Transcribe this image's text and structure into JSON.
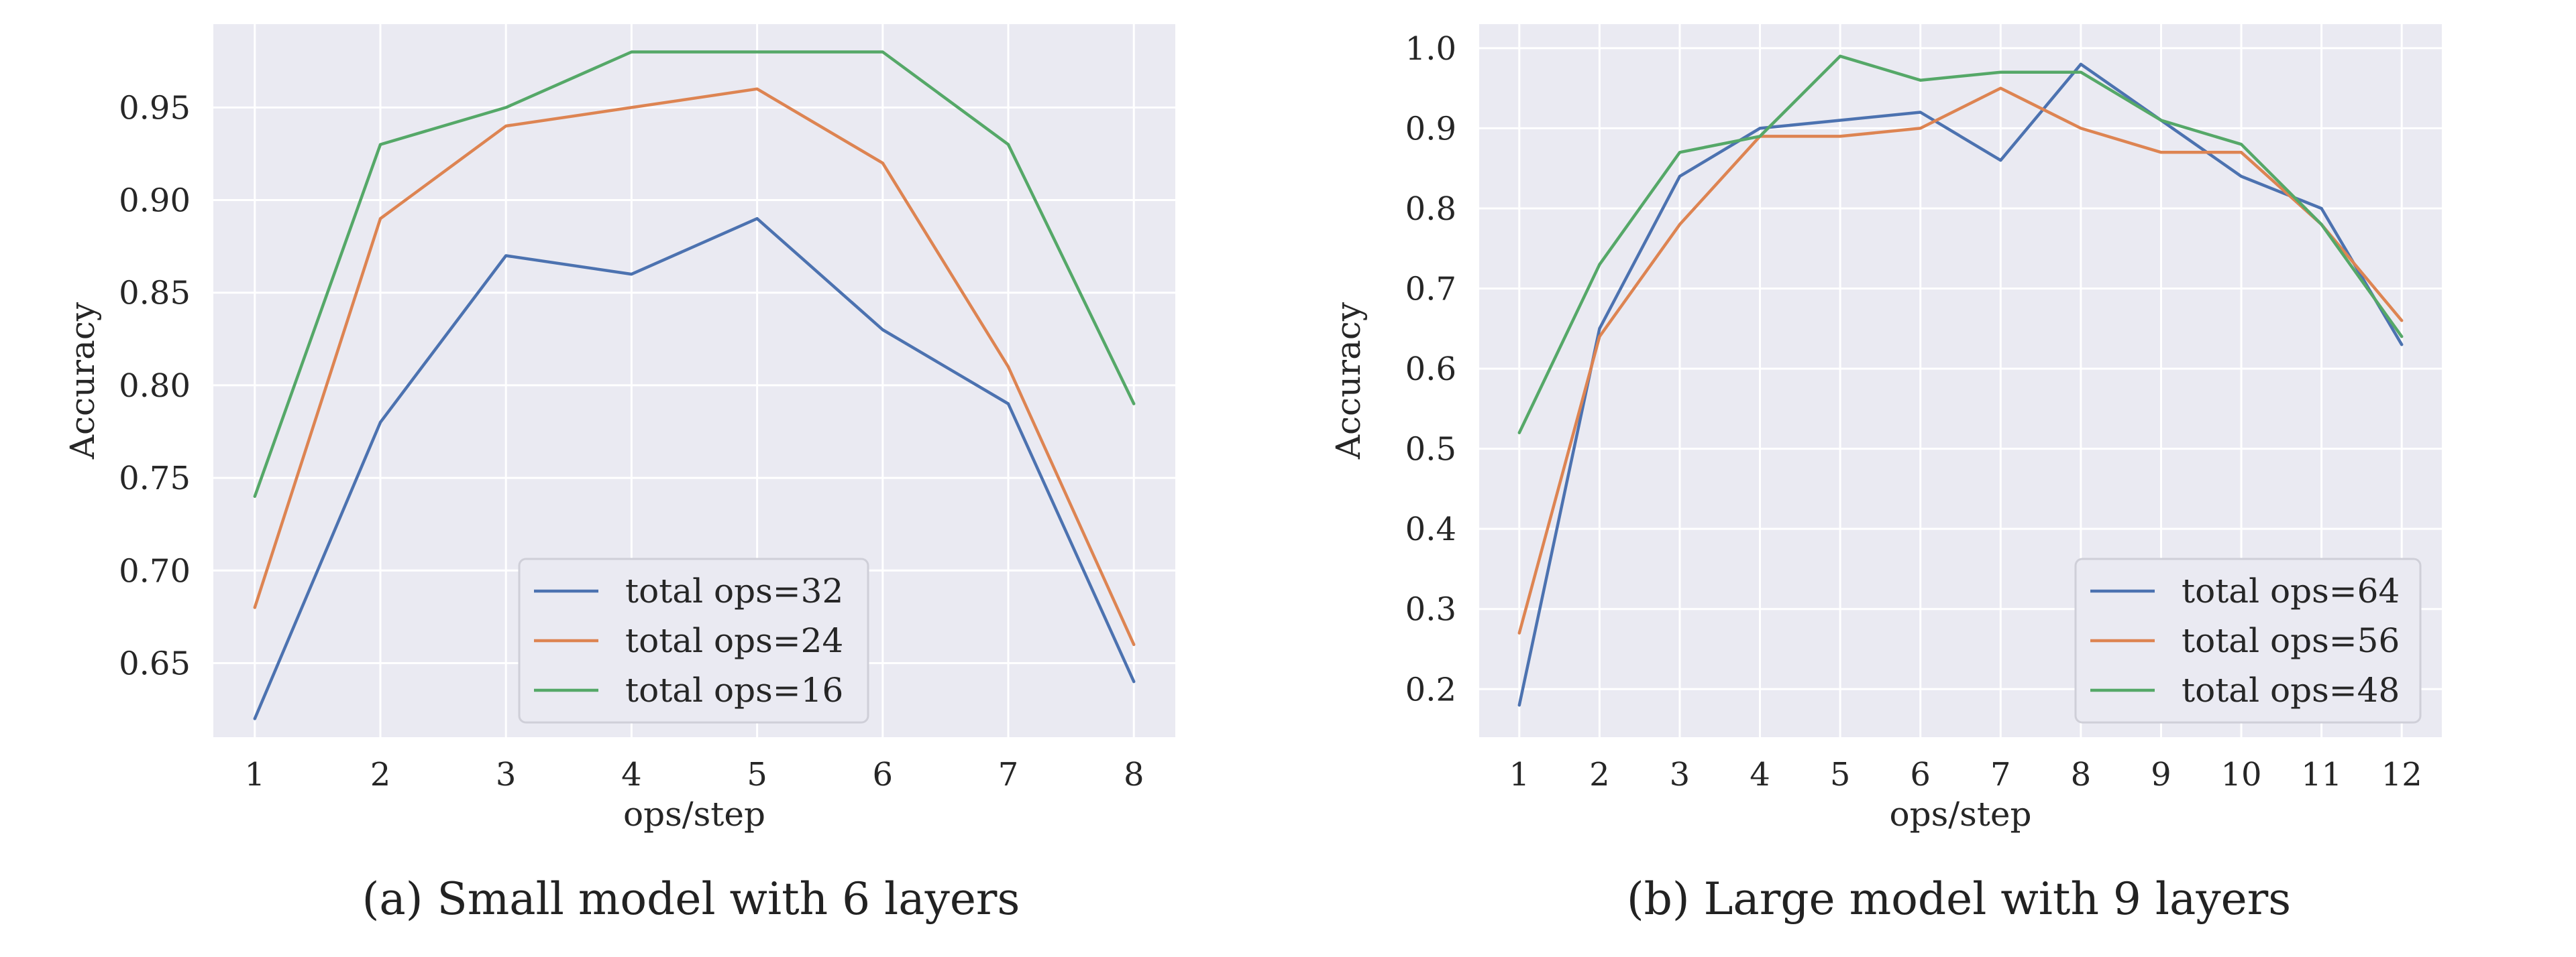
{
  "colors": {
    "series": [
      "#4c72b0",
      "#dd8452",
      "#55a868"
    ]
  },
  "chart_data": [
    {
      "type": "line",
      "title": "",
      "caption": "(a) Small model with 6 layers",
      "xlabel": "ops/step",
      "ylabel": "Accuracy",
      "x": [
        1,
        2,
        3,
        4,
        5,
        6,
        7,
        8
      ],
      "xlim": [
        0.67,
        8.33
      ],
      "ylim": [
        0.61,
        0.995
      ],
      "yticks": [
        0.65,
        0.7,
        0.75,
        0.8,
        0.85,
        0.9,
        0.95
      ],
      "ytick_labels": [
        "0.65",
        "0.70",
        "0.75",
        "0.80",
        "0.85",
        "0.90",
        "0.95"
      ],
      "xticks": [
        1,
        2,
        3,
        4,
        5,
        6,
        7,
        8
      ],
      "xtick_labels": [
        "1",
        "2",
        "3",
        "4",
        "5",
        "6",
        "7",
        "8"
      ],
      "grid": true,
      "legend_position": "bottom-center",
      "series": [
        {
          "name": "total ops=32",
          "values": [
            0.62,
            0.78,
            0.87,
            0.86,
            0.89,
            0.83,
            0.79,
            0.64
          ]
        },
        {
          "name": "total ops=24",
          "values": [
            0.68,
            0.89,
            0.94,
            0.95,
            0.96,
            0.92,
            0.81,
            0.66
          ]
        },
        {
          "name": "total ops=16",
          "values": [
            0.74,
            0.93,
            0.95,
            0.98,
            0.98,
            0.98,
            0.93,
            0.79
          ]
        }
      ]
    },
    {
      "type": "line",
      "title": "",
      "caption": "(b) Large model with 9 layers",
      "xlabel": "ops/step",
      "ylabel": "Accuracy",
      "x": [
        1,
        2,
        3,
        4,
        5,
        6,
        7,
        8,
        9,
        10,
        11,
        12
      ],
      "xlim": [
        0.5,
        12.5
      ],
      "ylim": [
        0.14,
        1.03
      ],
      "yticks": [
        0.2,
        0.3,
        0.4,
        0.5,
        0.6,
        0.7,
        0.8,
        0.9,
        1.0
      ],
      "ytick_labels": [
        "0.2",
        "0.3",
        "0.4",
        "0.5",
        "0.6",
        "0.7",
        "0.8",
        "0.9",
        "1.0"
      ],
      "xticks": [
        1,
        2,
        3,
        4,
        5,
        6,
        7,
        8,
        9,
        10,
        11,
        12
      ],
      "xtick_labels": [
        "1",
        "2",
        "3",
        "4",
        "5",
        "6",
        "7",
        "8",
        "9",
        "10",
        "11",
        "12"
      ],
      "grid": true,
      "legend_position": "bottom-right",
      "series": [
        {
          "name": "total ops=64",
          "values": [
            0.18,
            0.65,
            0.84,
            0.9,
            0.91,
            0.92,
            0.86,
            0.98,
            0.91,
            0.84,
            0.8,
            0.63
          ]
        },
        {
          "name": "total ops=56",
          "values": [
            0.27,
            0.64,
            0.78,
            0.89,
            0.89,
            0.9,
            0.95,
            0.9,
            0.87,
            0.87,
            0.78,
            0.66
          ]
        },
        {
          "name": "total ops=48",
          "values": [
            0.52,
            0.73,
            0.87,
            0.89,
            0.99,
            0.96,
            0.97,
            0.97,
            0.91,
            0.88,
            0.78,
            0.64
          ]
        }
      ]
    }
  ]
}
